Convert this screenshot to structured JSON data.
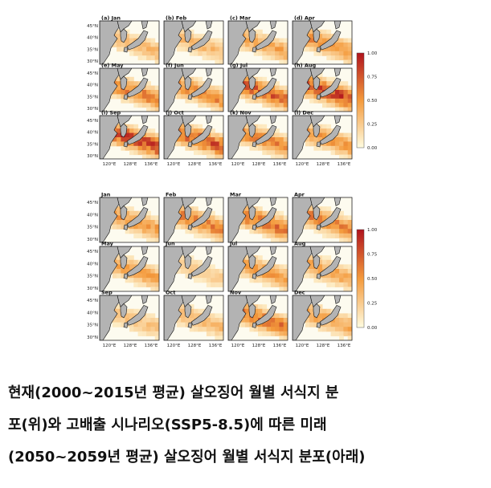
{
  "colors": {
    "land": "#b3b3b3",
    "border": "#222222",
    "coast": "#111111",
    "scale_low": "#fffce0",
    "scale_mid": "#f49a3c",
    "scale_high": "#b0131d"
  },
  "blocks": [
    {
      "name": "present",
      "panels": [
        "(a) Jan",
        "(b) Feb",
        "(c) Mar",
        "(d) Apr",
        "(e) May",
        "(f) Jun",
        "(g) Jul",
        "(h) Aug",
        "(i) Sep",
        "(j) Oct",
        "(k) Nov",
        "(l) Dec"
      ],
      "intensity": [
        0.35,
        0.35,
        0.45,
        0.55,
        0.6,
        0.6,
        0.75,
        0.85,
        0.85,
        0.75,
        0.6,
        0.5
      ],
      "y_ticks": [
        "45°N",
        "40°N",
        "35°N",
        "30°N"
      ],
      "x_ticks": [
        "120°E",
        "128°E",
        "136°E"
      ],
      "colorbar_ticks": [
        "1.00",
        "0.75",
        "0.50",
        "0.25",
        "0.00"
      ]
    },
    {
      "name": "future",
      "panels": [
        "Jan",
        "Feb",
        "Mar",
        "Apr",
        "May",
        "Jun",
        "Jul",
        "Aug",
        "Sep",
        "Oct",
        "Nov",
        "Dec"
      ],
      "intensity": [
        0.5,
        0.6,
        0.7,
        0.6,
        0.45,
        0.25,
        0.5,
        0.45,
        0.3,
        0.35,
        0.65,
        0.45
      ],
      "y_ticks": [
        "45°N",
        "40°N",
        "35°N",
        "30°N"
      ],
      "x_ticks": [
        "120°E",
        "128°E",
        "136°E"
      ],
      "colorbar_ticks": [
        "1.00",
        "0.75",
        "0.50",
        "0.25",
        "0.00"
      ]
    }
  ],
  "caption": {
    "line1": "현재(2000~2015년 평균) 살오징어 월별 서식지 분",
    "line2": "포(위)와 고배출 시나리오(SSP5-8.5)에 따른 미래",
    "line3": "(2050~2059년 평균) 살오징어 월별 서식지 분포(아래)"
  }
}
